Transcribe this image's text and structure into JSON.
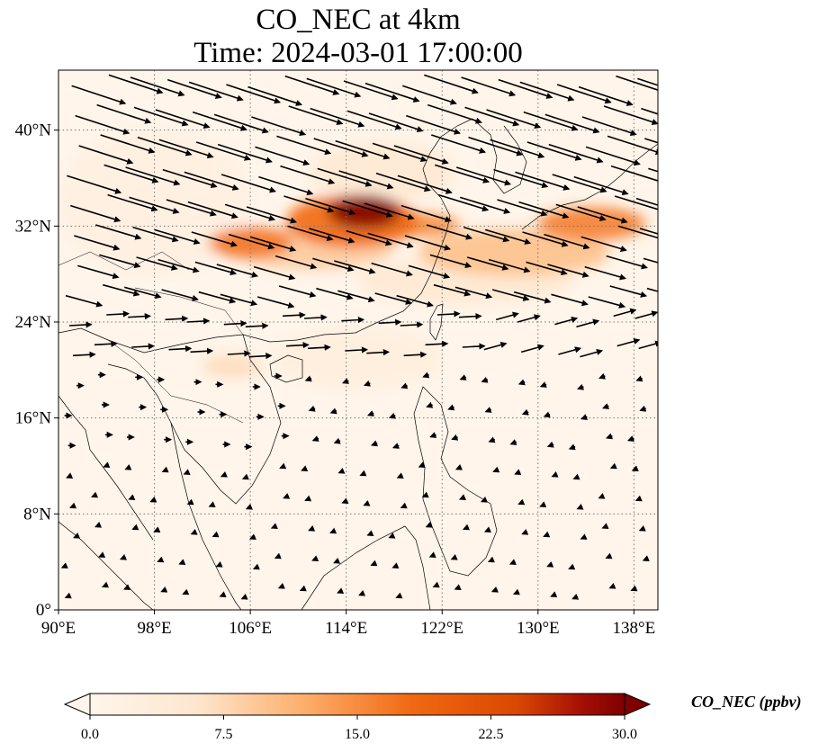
{
  "title": "CO_NEC at 4km",
  "subtitle": "Time: 2024-03-01 17:00:00",
  "colors": {
    "background": "#fff5ea",
    "colormap": [
      "#fff5eb",
      "#fdd8b2",
      "#fca464",
      "#e9561a",
      "#a51403",
      "#7f0000"
    ],
    "grid": "#777777",
    "coastline": "#000000"
  },
  "map": {
    "projection": "PlateCarree",
    "lon_range": [
      90,
      140
    ],
    "lat_range": [
      0,
      45
    ],
    "lon_ticks": [
      90,
      98,
      106,
      114,
      122,
      130,
      138
    ],
    "lat_ticks": [
      0,
      8,
      16,
      24,
      32,
      40
    ],
    "lon_tick_labels": [
      "90°E",
      "98°E",
      "106°E",
      "114°E",
      "122°E",
      "130°E",
      "138°E"
    ],
    "lat_tick_labels": [
      "0°",
      "8°N",
      "16°N",
      "24°N",
      "32°N",
      "40°N"
    ],
    "grid": "dotted"
  },
  "plumes": [
    {
      "lon": 115.5,
      "lat": 33.2,
      "rlon": 3.0,
      "rlat": 1.4,
      "value": 30
    },
    {
      "lon": 114.5,
      "lat": 32.4,
      "rlon": 5.5,
      "rlat": 2.2,
      "value": 18
    },
    {
      "lon": 119.5,
      "lat": 32.1,
      "rlon": 4.0,
      "rlat": 1.0,
      "value": 15
    },
    {
      "lon": 106.0,
      "lat": 30.6,
      "rlon": 3.5,
      "rlat": 1.3,
      "value": 17
    },
    {
      "lon": 111.0,
      "lat": 30.2,
      "rlon": 7.0,
      "rlat": 1.8,
      "value": 9
    },
    {
      "lon": 128.0,
      "lat": 29.8,
      "rlon": 8.0,
      "rlat": 2.0,
      "value": 10
    },
    {
      "lon": 134.5,
      "lat": 32.2,
      "rlon": 4.5,
      "rlat": 1.4,
      "value": 16
    },
    {
      "lon": 124.0,
      "lat": 27.5,
      "rlon": 9.0,
      "rlat": 2.0,
      "value": 5
    },
    {
      "lon": 117.0,
      "lat": 36.5,
      "rlon": 6.0,
      "rlat": 2.5,
      "value": 5
    },
    {
      "lon": 104.5,
      "lat": 20.3,
      "rlon": 2.5,
      "rlat": 1.0,
      "value": 7
    },
    {
      "lon": 115.0,
      "lat": 21.0,
      "rlon": 7.0,
      "rlat": 2.5,
      "value": 3
    },
    {
      "lon": 98.0,
      "lat": 34.0,
      "rlon": 8.0,
      "rlat": 6.0,
      "value": 2
    }
  ],
  "wind_field": {
    "lon_step": 2.5,
    "lat_step": 2.5
  },
  "colorbar": {
    "label": "CO_NEC (ppbv)",
    "min": 0.0,
    "max": 30.0,
    "ticks": [
      0,
      7.5,
      15,
      22.5,
      30
    ],
    "tick_labels": [
      "0.0",
      "7.5",
      "15.0",
      "22.5",
      "30.0"
    ],
    "extend": "both"
  }
}
